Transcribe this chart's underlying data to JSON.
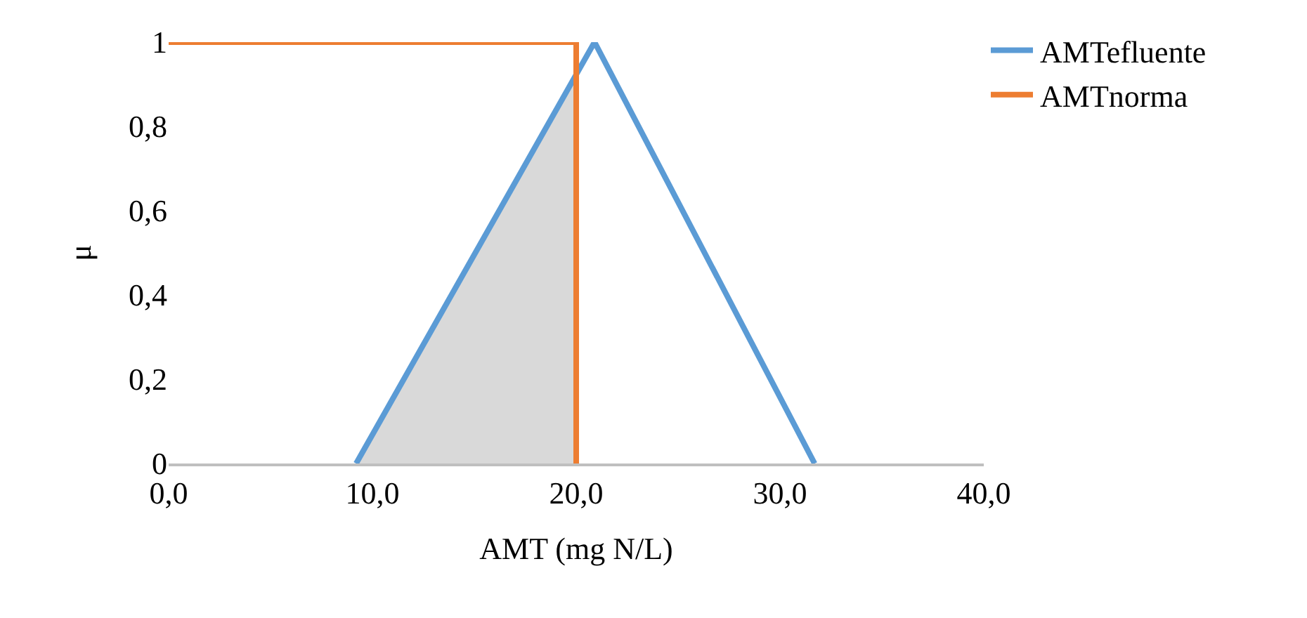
{
  "chart_data": {
    "type": "line",
    "xlabel": "AMT (mg N/L)",
    "ylabel": "μ",
    "xlim": [
      0,
      40
    ],
    "xticks": [
      {
        "value": 0,
        "label": "0,0"
      },
      {
        "value": 10,
        "label": "10,0"
      },
      {
        "value": 20,
        "label": "20,0"
      },
      {
        "value": 30,
        "label": "30,0"
      },
      {
        "value": 40,
        "label": "40,0"
      }
    ],
    "ylim": [
      0,
      1
    ],
    "yticks": [
      0,
      {
        "value": 0.2,
        "label": "0,2"
      },
      {
        "value": 0.4,
        "label": "0,4"
      },
      {
        "value": 0.6,
        "label": "0,6"
      },
      {
        "value": 0.8,
        "label": "0,8"
      },
      1
    ],
    "grid": false,
    "legend": "top right",
    "marker": "none",
    "series": [
      {
        "type": "area",
        "color": "#d9d9d9",
        "x": [
          9.2,
          20,
          20
        ],
        "values": [
          0,
          0.92,
          0
        ]
      },
      {
        "name": "AMTefluente",
        "color": "#5b9bd5",
        "x": [
          9.2,
          20.9,
          31.7
        ],
        "values": [
          0,
          1,
          0
        ]
      },
      {
        "name": "AMTnorma",
        "color": "#ed7d31",
        "x": [
          0,
          20,
          20
        ],
        "values": [
          1,
          1,
          0
        ]
      }
    ]
  }
}
